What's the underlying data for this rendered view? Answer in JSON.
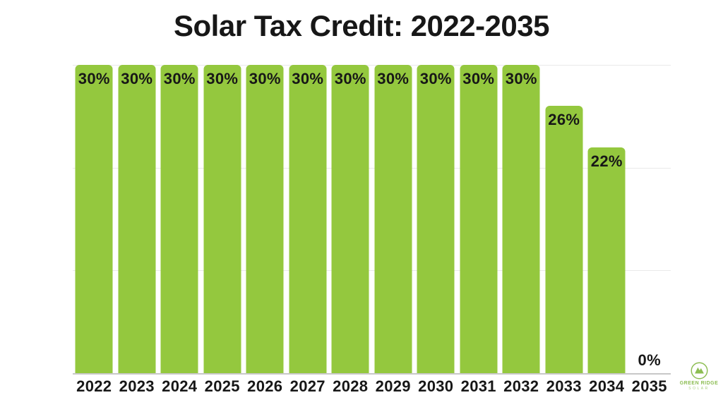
{
  "chart_data": {
    "type": "bar",
    "title": "Solar Tax Credit: 2022-2035",
    "categories": [
      "2022",
      "2023",
      "2024",
      "2025",
      "2026",
      "2027",
      "2028",
      "2029",
      "2030",
      "2031",
      "2032",
      "2033",
      "2034",
      "2035"
    ],
    "values": [
      30,
      30,
      30,
      30,
      30,
      30,
      30,
      30,
      30,
      30,
      30,
      26,
      22,
      0
    ],
    "value_labels": [
      "30%",
      "30%",
      "30%",
      "30%",
      "30%",
      "30%",
      "30%",
      "30%",
      "30%",
      "30%",
      "30%",
      "26%",
      "22%",
      "0%"
    ],
    "xlabel": "",
    "ylabel": "",
    "ylim": [
      0,
      30
    ],
    "gridline_values": [
      10,
      20,
      30
    ],
    "grid": true,
    "legend_position": "none",
    "bar_color": "#94C83E",
    "value_label_color": "#171717",
    "axis_label_color": "#171717",
    "gridline_color": "#E9E9E9",
    "axis_line_color": "#C8C8C8",
    "background_color": "#FFFFFF"
  },
  "branding": {
    "name": "GREEN RIDGE",
    "tagline": "SOLAR",
    "logo_color": "#8CBD52"
  }
}
